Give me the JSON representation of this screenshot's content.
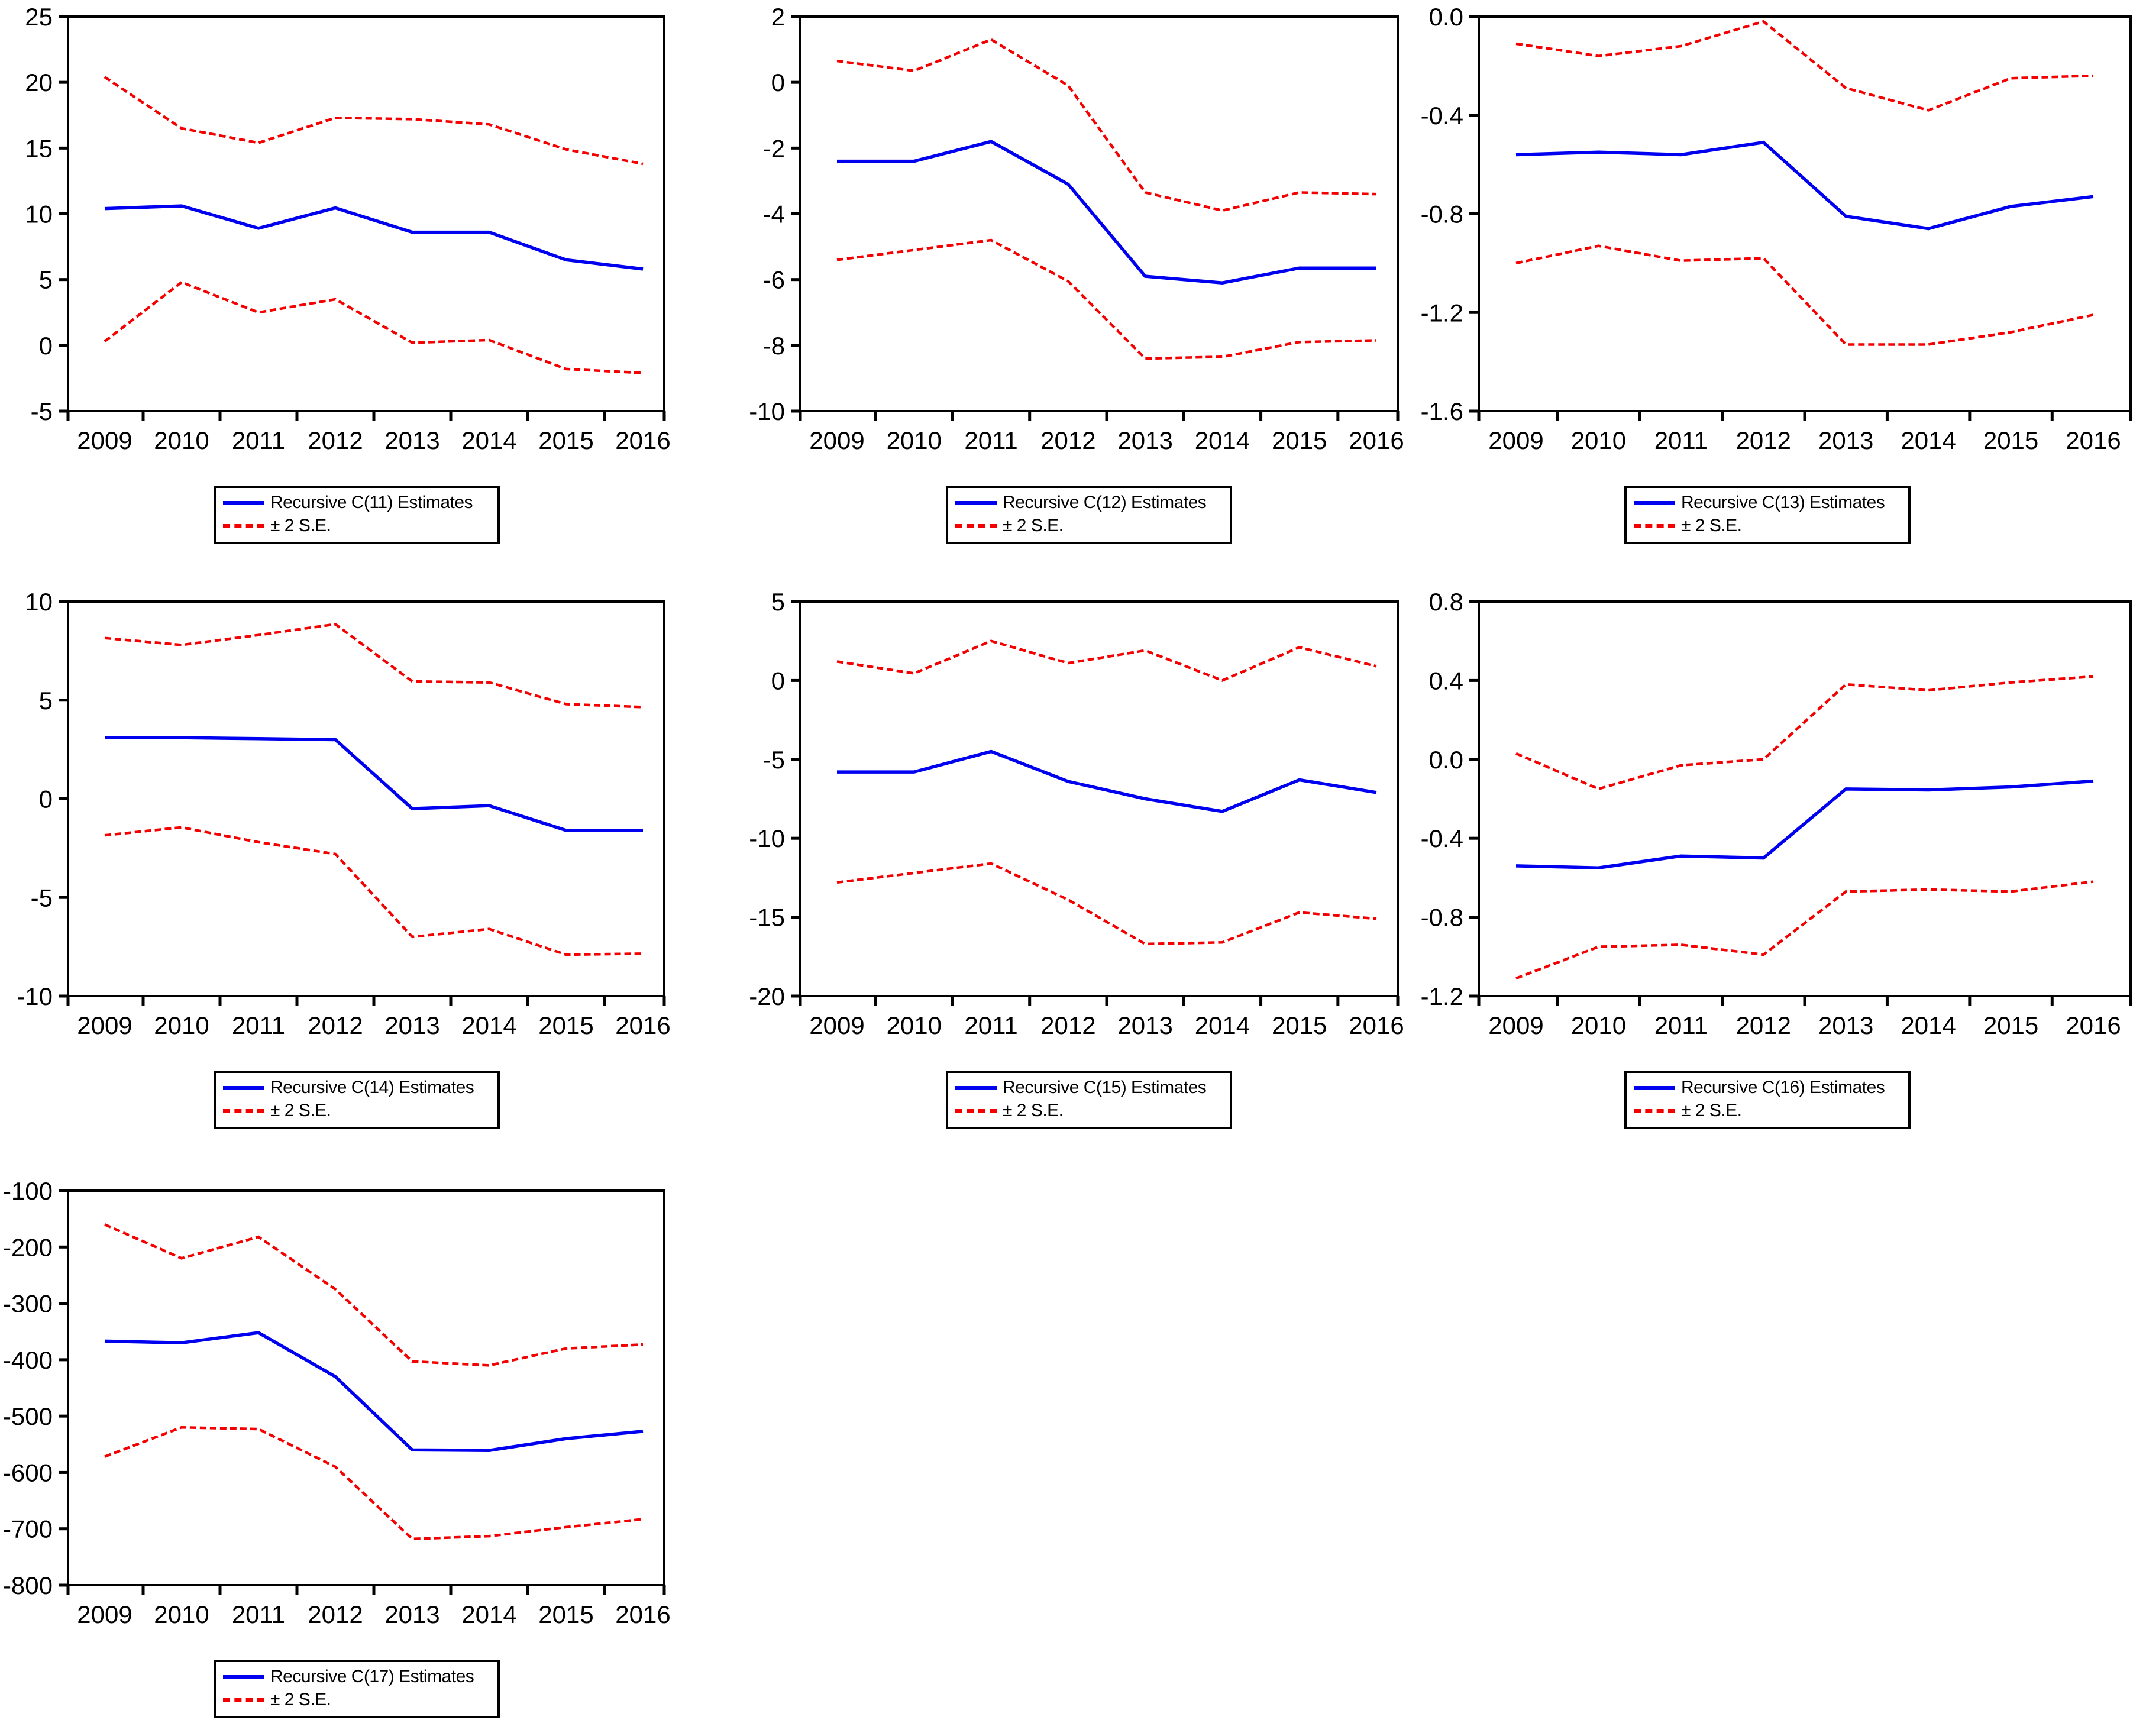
{
  "page": {
    "background": "#ffffff"
  },
  "colors": {
    "estimate_line": "#0000f0",
    "se_line": "#f40000",
    "axis": "#000000",
    "text": "#000000"
  },
  "chart_data": [
    {
      "type": "line",
      "id": "c11",
      "title": "",
      "xlabel": "",
      "ylabel": "",
      "grid": false,
      "legend_position": "bottom",
      "x_labels": [
        "2009",
        "2010",
        "2011",
        "2012",
        "2013",
        "2014",
        "2015",
        "2016"
      ],
      "ylim": [
        -5,
        25
      ],
      "ytick_step": 5,
      "ytick_labels": [
        "25",
        "20",
        "15",
        "10",
        "5",
        "0",
        "-5"
      ],
      "legend": {
        "estimates_label": "Recursive C(11) Estimates",
        "se_label": "± 2 S.E."
      },
      "series": [
        {
          "name": "Recursive C(11) Estimates",
          "role": "estimate",
          "values": [
            10.4,
            10.6,
            8.9,
            10.45,
            8.6,
            8.6,
            6.5,
            5.8
          ]
        },
        {
          "name": "+2 S.E.",
          "role": "upper",
          "values": [
            20.4,
            16.5,
            15.4,
            17.3,
            17.2,
            16.8,
            14.9,
            13.8
          ]
        },
        {
          "name": "-2 S.E.",
          "role": "lower",
          "values": [
            0.3,
            4.8,
            2.5,
            3.5,
            0.2,
            0.4,
            -1.8,
            -2.1
          ]
        }
      ]
    },
    {
      "type": "line",
      "id": "c12",
      "title": "",
      "xlabel": "",
      "ylabel": "",
      "grid": false,
      "legend_position": "bottom",
      "x_labels": [
        "2009",
        "2010",
        "2011",
        "2012",
        "2013",
        "2014",
        "2015",
        "2016"
      ],
      "ylim": [
        -10,
        2
      ],
      "ytick_step": 2,
      "ytick_labels": [
        "2",
        "0",
        "-2",
        "-4",
        "-6",
        "-8",
        "-10"
      ],
      "legend": {
        "estimates_label": "Recursive C(12) Estimates",
        "se_label": "± 2 S.E."
      },
      "series": [
        {
          "name": "Recursive C(12) Estimates",
          "role": "estimate",
          "values": [
            -2.4,
            -2.4,
            -1.8,
            -3.1,
            -5.9,
            -6.1,
            -5.65,
            -5.65
          ]
        },
        {
          "name": "+2 S.E.",
          "role": "upper",
          "values": [
            0.65,
            0.35,
            1.3,
            -0.1,
            -3.35,
            -3.9,
            -3.35,
            -3.4
          ]
        },
        {
          "name": "-2 S.E.",
          "role": "lower",
          "values": [
            -5.4,
            -5.1,
            -4.8,
            -6.05,
            -8.4,
            -8.35,
            -7.9,
            -7.85
          ]
        }
      ]
    },
    {
      "type": "line",
      "id": "c13",
      "title": "",
      "xlabel": "",
      "ylabel": "",
      "grid": false,
      "legend_position": "bottom",
      "x_labels": [
        "2009",
        "2010",
        "2011",
        "2012",
        "2013",
        "2014",
        "2015",
        "2016"
      ],
      "ylim": [
        -1.6,
        0.0
      ],
      "ytick_step": 0.4,
      "ytick_labels": [
        "0.0",
        "-0.4",
        "-0.8",
        "-1.2",
        "-1.6"
      ],
      "legend": {
        "estimates_label": "Recursive C(13) Estimates",
        "se_label": "± 2 S.E."
      },
      "series": [
        {
          "name": "Recursive C(13) Estimates",
          "role": "estimate",
          "values": [
            -0.56,
            -0.55,
            -0.56,
            -0.51,
            -0.81,
            -0.86,
            -0.77,
            -0.73
          ]
        },
        {
          "name": "+2 S.E.",
          "role": "upper",
          "values": [
            -0.11,
            -0.16,
            -0.12,
            -0.02,
            -0.29,
            -0.38,
            -0.25,
            -0.24
          ]
        },
        {
          "name": "-2 S.E.",
          "role": "lower",
          "values": [
            -1.0,
            -0.93,
            -0.99,
            -0.98,
            -1.33,
            -1.33,
            -1.28,
            -1.21
          ]
        }
      ]
    },
    {
      "type": "line",
      "id": "c14",
      "title": "",
      "xlabel": "",
      "ylabel": "",
      "grid": false,
      "legend_position": "bottom",
      "x_labels": [
        "2009",
        "2010",
        "2011",
        "2012",
        "2013",
        "2014",
        "2015",
        "2016"
      ],
      "ylim": [
        -10,
        10
      ],
      "ytick_step": 5,
      "ytick_labels": [
        "10",
        "5",
        "0",
        "-5",
        "-10"
      ],
      "legend": {
        "estimates_label": "Recursive C(14) Estimates",
        "se_label": "± 2 S.E."
      },
      "series": [
        {
          "name": "Recursive C(14) Estimates",
          "role": "estimate",
          "values": [
            3.1,
            3.1,
            3.05,
            3.0,
            -0.5,
            -0.35,
            -1.6,
            -1.6
          ]
        },
        {
          "name": "+2 S.E.",
          "role": "upper",
          "values": [
            8.15,
            7.8,
            8.3,
            8.85,
            5.95,
            5.9,
            4.8,
            4.65
          ]
        },
        {
          "name": "-2 S.E.",
          "role": "lower",
          "values": [
            -1.85,
            -1.45,
            -2.2,
            -2.8,
            -7.0,
            -6.6,
            -7.9,
            -7.85
          ]
        }
      ]
    },
    {
      "type": "line",
      "id": "c15",
      "title": "",
      "xlabel": "",
      "ylabel": "",
      "grid": false,
      "legend_position": "bottom",
      "x_labels": [
        "2009",
        "2010",
        "2011",
        "2012",
        "2013",
        "2014",
        "2015",
        "2016"
      ],
      "ylim": [
        -20,
        5
      ],
      "ytick_step": 5,
      "ytick_labels": [
        "5",
        "0",
        "-5",
        "-10",
        "-15",
        "-20"
      ],
      "legend": {
        "estimates_label": "Recursive C(15) Estimates",
        "se_label": "± 2 S.E."
      },
      "series": [
        {
          "name": "Recursive C(15) Estimates",
          "role": "estimate",
          "values": [
            -5.8,
            -5.8,
            -4.5,
            -6.4,
            -7.5,
            -8.3,
            -6.3,
            -7.1
          ]
        },
        {
          "name": "+2 S.E.",
          "role": "upper",
          "values": [
            1.2,
            0.45,
            2.5,
            1.1,
            1.9,
            0.0,
            2.1,
            0.9
          ]
        },
        {
          "name": "-2 S.E.",
          "role": "lower",
          "values": [
            -12.8,
            -12.2,
            -11.6,
            -13.9,
            -16.7,
            -16.6,
            -14.7,
            -15.1
          ]
        }
      ]
    },
    {
      "type": "line",
      "id": "c16",
      "title": "",
      "xlabel": "",
      "ylabel": "",
      "grid": false,
      "legend_position": "bottom",
      "x_labels": [
        "2009",
        "2010",
        "2011",
        "2012",
        "2013",
        "2014",
        "2015",
        "2016"
      ],
      "ylim": [
        -1.2,
        0.8
      ],
      "ytick_step": 0.4,
      "ytick_labels": [
        "0.8",
        "0.4",
        "0.0",
        "-0.4",
        "-0.8",
        "-1.2"
      ],
      "legend": {
        "estimates_label": "Recursive C(16) Estimates",
        "se_label": "± 2 S.E."
      },
      "series": [
        {
          "name": "Recursive C(16) Estimates",
          "role": "estimate",
          "values": [
            -0.54,
            -0.55,
            -0.49,
            -0.5,
            -0.15,
            -0.155,
            -0.14,
            -0.11
          ]
        },
        {
          "name": "+2 S.E.",
          "role": "upper",
          "values": [
            0.03,
            -0.15,
            -0.03,
            0.0,
            0.38,
            0.35,
            0.39,
            0.42
          ]
        },
        {
          "name": "-2 S.E.",
          "role": "lower",
          "values": [
            -1.11,
            -0.95,
            -0.94,
            -0.99,
            -0.67,
            -0.66,
            -0.67,
            -0.62
          ]
        }
      ]
    },
    {
      "type": "line",
      "id": "c17",
      "title": "",
      "xlabel": "",
      "ylabel": "",
      "grid": false,
      "legend_position": "bottom",
      "x_labels": [
        "2009",
        "2010",
        "2011",
        "2012",
        "2013",
        "2014",
        "2015",
        "2016"
      ],
      "ylim": [
        -800,
        -100
      ],
      "ytick_step": 100,
      "ytick_labels": [
        "-100",
        "-200",
        "-300",
        "-400",
        "-500",
        "-600",
        "-700",
        "-800"
      ],
      "legend": {
        "estimates_label": "Recursive C(17) Estimates",
        "se_label": "± 2 S.E."
      },
      "series": [
        {
          "name": "Recursive C(17) Estimates",
          "role": "estimate",
          "values": [
            -367,
            -370,
            -352,
            -430,
            -560,
            -561,
            -540,
            -527
          ]
        },
        {
          "name": "+2 S.E.",
          "role": "upper",
          "values": [
            -160,
            -220,
            -182,
            -275,
            -403,
            -410,
            -380,
            -373
          ]
        },
        {
          "name": "-2 S.E.",
          "role": "lower",
          "values": [
            -572,
            -520,
            -523,
            -590,
            -718,
            -713,
            -697,
            -683
          ]
        }
      ]
    }
  ]
}
